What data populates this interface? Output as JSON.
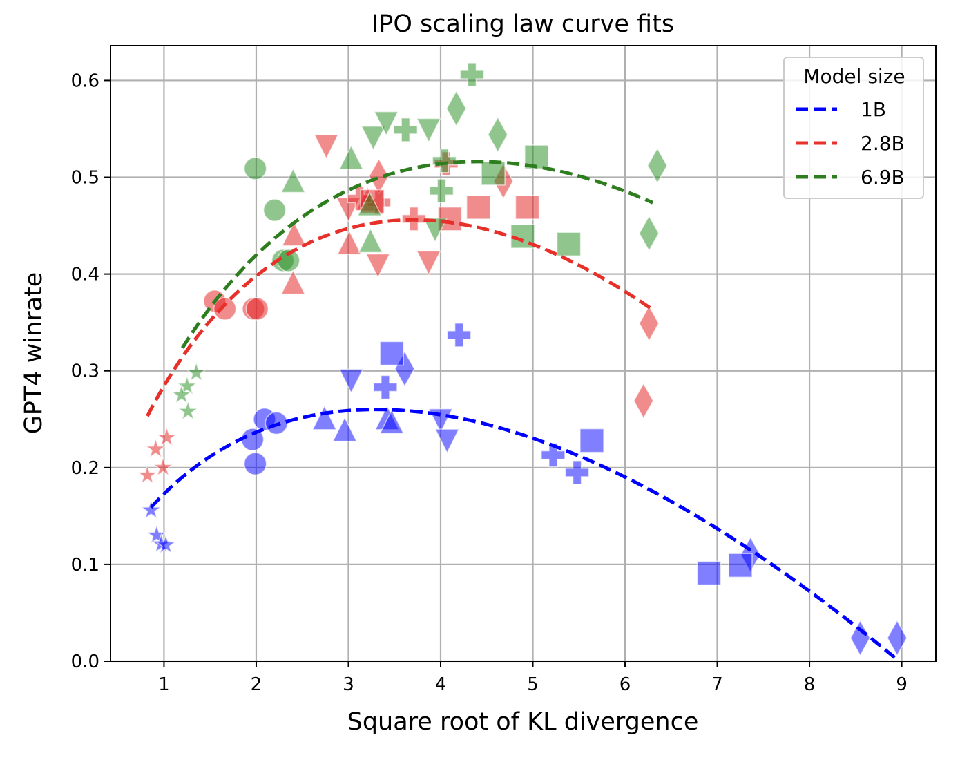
{
  "chart_data": {
    "type": "scatter",
    "title": "IPO scaling law curve fits",
    "xlabel": "Square root of KL divergence",
    "ylabel": "GPT4 winrate",
    "xlim": [
      0.42,
      9.37
    ],
    "ylim": [
      0.0,
      0.636
    ],
    "xticks": [
      "1",
      "2",
      "3",
      "4",
      "5",
      "6",
      "7",
      "8",
      "9"
    ],
    "yticks": [
      "0.0",
      "0.1",
      "0.2",
      "0.3",
      "0.4",
      "0.5",
      "0.6"
    ],
    "grid": true,
    "legend": {
      "title": "Model size",
      "placement": "top-right"
    },
    "fit_form": "y = d * (alpha - beta * ln d)",
    "series": [
      {
        "name": "1B",
        "color": "#0000ff",
        "point_color": "#0000ff",
        "fit": {
          "alpha": 0.1729,
          "beta": 0.0788,
          "x_range": [
            0.86,
            8.97
          ]
        },
        "points": [
          {
            "marker": "circle",
            "x": 2.09,
            "y": 0.25
          },
          {
            "marker": "circle",
            "x": 2.22,
            "y": 0.246
          },
          {
            "marker": "circle",
            "x": 1.96,
            "y": 0.229
          },
          {
            "marker": "circle",
            "x": 1.99,
            "y": 0.204
          },
          {
            "marker": "triangle-up",
            "x": 2.74,
            "y": 0.25
          },
          {
            "marker": "triangle-up",
            "x": 2.96,
            "y": 0.238
          },
          {
            "marker": "triangle-up",
            "x": 3.42,
            "y": 0.25
          },
          {
            "marker": "triangle-up",
            "x": 3.47,
            "y": 0.246
          },
          {
            "marker": "triangle-down",
            "x": 3.03,
            "y": 0.291
          },
          {
            "marker": "triangle-down",
            "x": 4.0,
            "y": 0.25
          },
          {
            "marker": "triangle-down",
            "x": 4.07,
            "y": 0.229
          },
          {
            "marker": "plus",
            "x": 3.4,
            "y": 0.283
          },
          {
            "marker": "plus",
            "x": 4.2,
            "y": 0.337
          },
          {
            "marker": "plus",
            "x": 5.22,
            "y": 0.213
          },
          {
            "marker": "plus",
            "x": 5.48,
            "y": 0.195
          },
          {
            "marker": "diamond",
            "x": 3.61,
            "y": 0.302
          },
          {
            "marker": "diamond",
            "x": 7.36,
            "y": 0.11
          },
          {
            "marker": "diamond",
            "x": 8.55,
            "y": 0.024
          },
          {
            "marker": "diamond",
            "x": 8.95,
            "y": 0.024
          },
          {
            "marker": "square",
            "x": 3.47,
            "y": 0.318
          },
          {
            "marker": "square",
            "x": 5.64,
            "y": 0.228
          },
          {
            "marker": "square",
            "x": 6.91,
            "y": 0.091
          },
          {
            "marker": "square",
            "x": 7.25,
            "y": 0.099
          },
          {
            "marker": "star",
            "x": 0.86,
            "y": 0.156
          },
          {
            "marker": "star",
            "x": 0.92,
            "y": 0.13
          },
          {
            "marker": "star",
            "x": 0.97,
            "y": 0.121
          },
          {
            "marker": "star",
            "x": 1.02,
            "y": 0.12
          }
        ]
      },
      {
        "name": "2.8B",
        "color": "#e8302a",
        "point_color": "#e31a1c",
        "fit": {
          "alpha": 0.2844,
          "beta": 0.1232,
          "x_range": [
            0.82,
            6.27
          ]
        },
        "points": [
          {
            "marker": "circle",
            "x": 1.55,
            "y": 0.372
          },
          {
            "marker": "circle",
            "x": 1.66,
            "y": 0.364
          },
          {
            "marker": "circle",
            "x": 1.97,
            "y": 0.364
          },
          {
            "marker": "circle",
            "x": 2.01,
            "y": 0.364
          },
          {
            "marker": "triangle-up",
            "x": 2.41,
            "y": 0.44
          },
          {
            "marker": "triangle-up",
            "x": 2.4,
            "y": 0.39
          },
          {
            "marker": "triangle-up",
            "x": 3.01,
            "y": 0.431
          },
          {
            "marker": "triangle-up",
            "x": 3.21,
            "y": 0.476
          },
          {
            "marker": "triangle-down",
            "x": 2.76,
            "y": 0.533
          },
          {
            "marker": "triangle-down",
            "x": 3.0,
            "y": 0.468
          },
          {
            "marker": "triangle-down",
            "x": 3.32,
            "y": 0.41
          },
          {
            "marker": "triangle-down",
            "x": 3.87,
            "y": 0.413
          },
          {
            "marker": "plus",
            "x": 3.33,
            "y": 0.474
          },
          {
            "marker": "plus",
            "x": 3.71,
            "y": 0.457
          },
          {
            "marker": "plus",
            "x": 4.06,
            "y": 0.514
          },
          {
            "marker": "plus",
            "x": 3.12,
            "y": 0.478
          },
          {
            "marker": "diamond",
            "x": 3.33,
            "y": 0.501
          },
          {
            "marker": "diamond",
            "x": 4.68,
            "y": 0.496
          },
          {
            "marker": "diamond",
            "x": 6.26,
            "y": 0.349
          },
          {
            "marker": "diamond",
            "x": 6.2,
            "y": 0.269
          },
          {
            "marker": "square",
            "x": 3.26,
            "y": 0.475
          },
          {
            "marker": "square",
            "x": 4.1,
            "y": 0.457
          },
          {
            "marker": "square",
            "x": 4.41,
            "y": 0.469
          },
          {
            "marker": "square",
            "x": 4.94,
            "y": 0.469
          },
          {
            "marker": "star",
            "x": 1.03,
            "y": 0.231
          },
          {
            "marker": "star",
            "x": 0.91,
            "y": 0.219
          },
          {
            "marker": "star",
            "x": 0.99,
            "y": 0.2
          },
          {
            "marker": "star",
            "x": 0.82,
            "y": 0.192
          }
        ]
      },
      {
        "name": "6.9B",
        "color": "#2e7d1e",
        "point_color": "#228b1e",
        "fit": {
          "alpha": 0.2911,
          "beta": 0.1173,
          "x_range": [
            1.2,
            6.3
          ]
        },
        "points": [
          {
            "marker": "circle",
            "x": 1.99,
            "y": 0.509
          },
          {
            "marker": "circle",
            "x": 2.2,
            "y": 0.466
          },
          {
            "marker": "circle",
            "x": 2.29,
            "y": 0.414
          },
          {
            "marker": "circle",
            "x": 2.35,
            "y": 0.414
          },
          {
            "marker": "triangle-up",
            "x": 2.4,
            "y": 0.495
          },
          {
            "marker": "triangle-up",
            "x": 3.03,
            "y": 0.519
          },
          {
            "marker": "triangle-up",
            "x": 3.23,
            "y": 0.471
          },
          {
            "marker": "triangle-up",
            "x": 3.24,
            "y": 0.433
          },
          {
            "marker": "triangle-down",
            "x": 3.27,
            "y": 0.542
          },
          {
            "marker": "triangle-down",
            "x": 3.41,
            "y": 0.557
          },
          {
            "marker": "triangle-down",
            "x": 3.87,
            "y": 0.55
          },
          {
            "marker": "triangle-down",
            "x": 3.94,
            "y": 0.447
          },
          {
            "marker": "plus",
            "x": 3.62,
            "y": 0.549
          },
          {
            "marker": "plus",
            "x": 4.34,
            "y": 0.606
          },
          {
            "marker": "plus",
            "x": 4.04,
            "y": 0.517
          },
          {
            "marker": "plus",
            "x": 4.01,
            "y": 0.486
          },
          {
            "marker": "diamond",
            "x": 4.17,
            "y": 0.571
          },
          {
            "marker": "diamond",
            "x": 4.62,
            "y": 0.544
          },
          {
            "marker": "diamond",
            "x": 6.35,
            "y": 0.512
          },
          {
            "marker": "diamond",
            "x": 6.26,
            "y": 0.442
          },
          {
            "marker": "square",
            "x": 5.04,
            "y": 0.521
          },
          {
            "marker": "square",
            "x": 4.57,
            "y": 0.504
          },
          {
            "marker": "square",
            "x": 4.89,
            "y": 0.439
          },
          {
            "marker": "square",
            "x": 5.39,
            "y": 0.431
          },
          {
            "marker": "star",
            "x": 1.35,
            "y": 0.298
          },
          {
            "marker": "star",
            "x": 1.25,
            "y": 0.284
          },
          {
            "marker": "star",
            "x": 1.19,
            "y": 0.275
          },
          {
            "marker": "star",
            "x": 1.26,
            "y": 0.258
          }
        ]
      }
    ]
  }
}
